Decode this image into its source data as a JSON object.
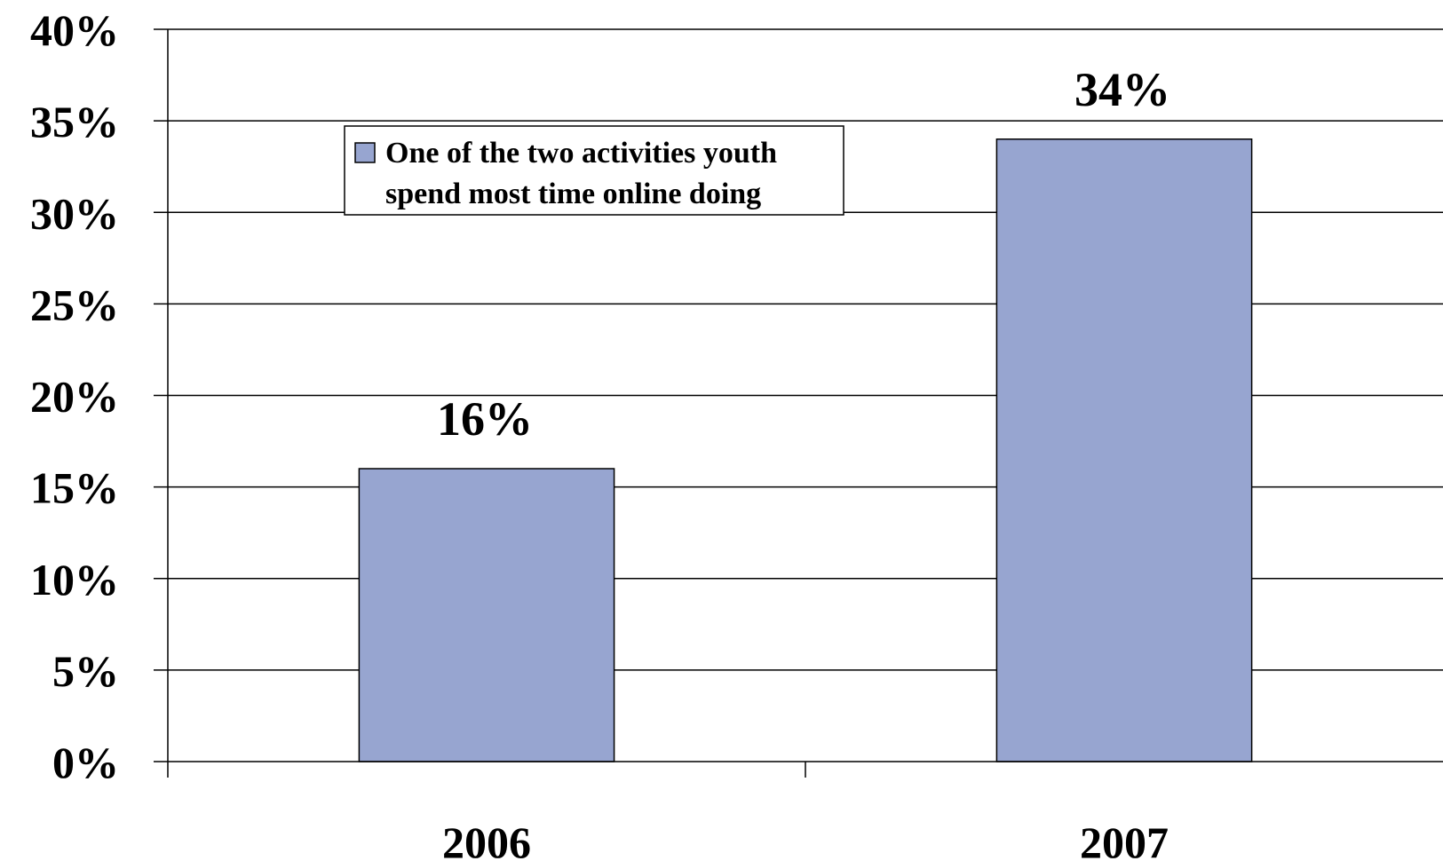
{
  "chart_data": {
    "type": "bar",
    "categories": [
      "2006",
      "2007"
    ],
    "series": [
      {
        "name": "One of the two activities youth spend most time online doing",
        "name_lines": [
          "One of the two activities youth",
          "spend most time online doing"
        ],
        "values": [
          16,
          34
        ],
        "data_labels": [
          "16%",
          "34%"
        ],
        "color": "#97a5d0"
      }
    ],
    "ylim": [
      0,
      40
    ],
    "yticks": [
      0,
      5,
      10,
      15,
      20,
      25,
      30,
      35,
      40
    ],
    "ytick_labels": [
      "0%",
      "5%",
      "10%",
      "15%",
      "20%",
      "25%",
      "30%",
      "35%",
      "40%"
    ],
    "grid": true,
    "legend_position": "top-left"
  }
}
